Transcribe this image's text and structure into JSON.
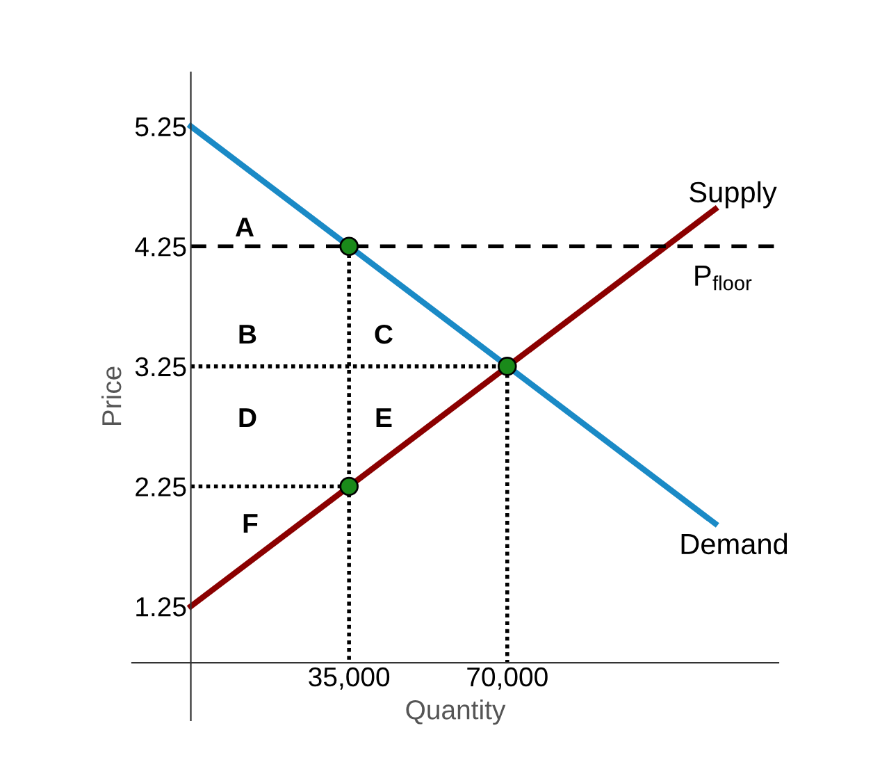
{
  "chart_data": {
    "type": "line",
    "xlabel": "Quantity",
    "ylabel": "Price",
    "xlim": [
      -13000,
      130000
    ],
    "ylim": [
      0.3,
      5.7
    ],
    "xticks": [
      {
        "value": 35000,
        "label": "35,000"
      },
      {
        "value": 70000,
        "label": "70,000"
      }
    ],
    "yticks": [
      1.25,
      2.25,
      3.25,
      4.25,
      5.25
    ],
    "grid": false,
    "legend": false,
    "series": [
      {
        "color": "#1a8ac6",
        "line_style": "solid",
        "x": [
          0,
          116000
        ],
        "values": [
          5.25,
          1.94
        ]
      },
      {
        "color": "#8b0000",
        "line_style": "solid",
        "x": [
          0,
          116000
        ],
        "values": [
          1.25,
          4.56
        ]
      },
      {
        "type": "line",
        "color": "#000000",
        "line_style": "dashed",
        "x": [
          0,
          130000
        ],
        "values": [
          4.25,
          4.25
        ]
      },
      {
        "type": "line",
        "color": "#000000",
        "line_style": "dotted",
        "x": [
          0,
          70000
        ],
        "values": [
          3.25,
          3.25
        ]
      },
      {
        "type": "line",
        "color": "#000000",
        "line_style": "dotted",
        "x": [
          0,
          35000
        ],
        "values": [
          2.25,
          2.25
        ]
      },
      {
        "type": "line",
        "color": "#000000",
        "line_style": "dotted",
        "x": [
          35000,
          35000
        ],
        "values": [
          4.25,
          0.78
        ]
      },
      {
        "type": "line",
        "color": "#000000",
        "line_style": "dotted",
        "x": [
          70000,
          70000
        ],
        "values": [
          3.25,
          0.78
        ]
      },
      {
        "type": "scatter",
        "color": "#1a8a1a",
        "marker": "circle",
        "x": [
          35000,
          70000,
          35000
        ],
        "values": [
          4.25,
          3.25,
          2.25
        ]
      }
    ],
    "annotations": [
      "Supply",
      "P$_{floor}$",
      "Demand",
      "A",
      "B",
      "C",
      "D",
      "E",
      "F"
    ]
  }
}
